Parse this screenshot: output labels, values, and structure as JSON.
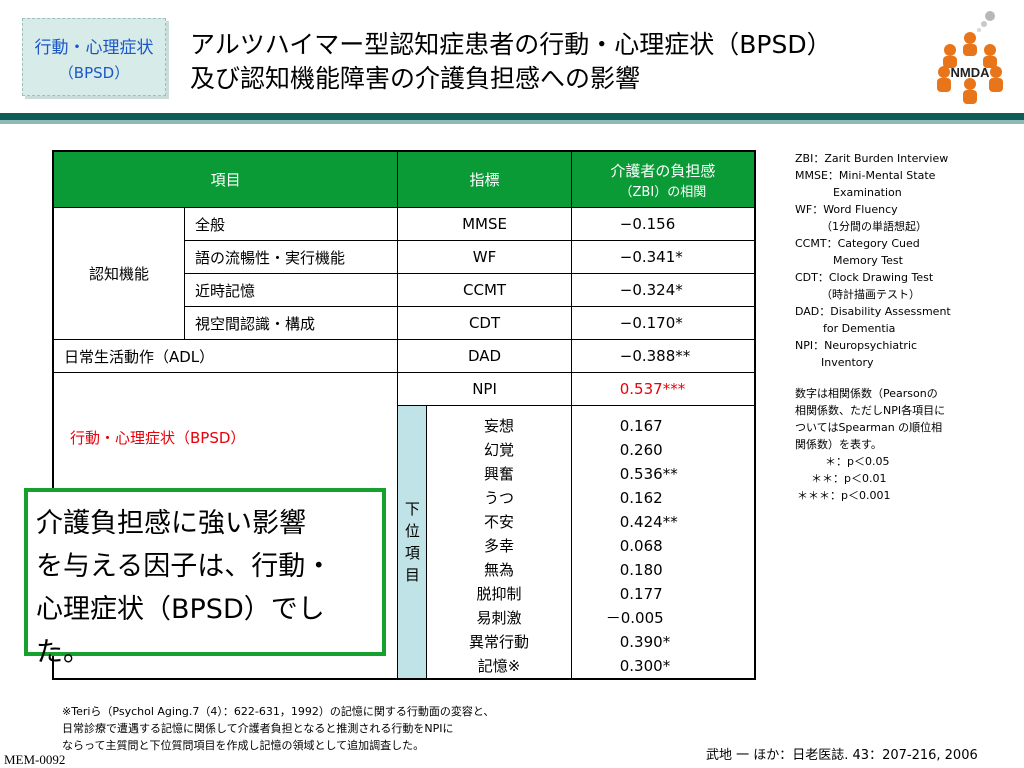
{
  "tag": {
    "line1": "行動・心理症状",
    "line2": "（BPSD）"
  },
  "title": {
    "line1": "アルツハイマー型認知症患者の行動・心理症状（BPSD）",
    "line2": "及び認知機能障害の介護負担感への影響"
  },
  "logo": {
    "text": "NMDA",
    "icon": "nmda-logo-people-ring",
    "color": "#e8751a"
  },
  "table": {
    "headers": {
      "item": "項目",
      "index": "指標",
      "burden_line1": "介護者の負担感",
      "burden_line2": "（ZBI）の相関"
    },
    "cognitive_group": "認知機能",
    "cognitive_rows": [
      {
        "item": "全般",
        "index": "MMSE",
        "value": "−0.156"
      },
      {
        "item": "語の流暢性・実行機能",
        "index": "WF",
        "value": "−0.341*"
      },
      {
        "item": "近時記憶",
        "index": "CCMT",
        "value": "−0.324*"
      },
      {
        "item": "視空間認識・構成",
        "index": "CDT",
        "value": "−0.170*"
      }
    ],
    "adl": {
      "item": "日常生活動作（ADL）",
      "index": "DAD",
      "value": "−0.388**"
    },
    "bpsd": {
      "label": "行動・心理症状（BPSD）",
      "index": "NPI",
      "value": "0.537***",
      "sub_label": [
        "下",
        "位",
        "項",
        "目"
      ],
      "sub_items": [
        {
          "name": "妄想",
          "value": "0.167"
        },
        {
          "name": "幻覚",
          "value": "0.260"
        },
        {
          "name": "興奮",
          "value": "0.536**"
        },
        {
          "name": "うつ",
          "value": "0.162"
        },
        {
          "name": "不安",
          "value": "0.424**"
        },
        {
          "name": "多幸",
          "value": "0.068"
        },
        {
          "name": "無為",
          "value": "0.180"
        },
        {
          "name": "脱抑制",
          "value": "0.177"
        },
        {
          "name": "易刺激",
          "value": "－0.005"
        },
        {
          "name": "異常行動",
          "value": "0.390*"
        },
        {
          "name": "記憶※",
          "value": "0.300*"
        }
      ]
    }
  },
  "callout": {
    "line1": "介護負担感に強い影響",
    "line2": "を与える因子は、行動・",
    "line3": "心理症状（BPSD）でした。"
  },
  "notes": {
    "abbr": [
      "ZBI：Zarit Burden Interview",
      "MMSE：Mini-Mental State",
      "Examination",
      "WF：Word Fluency",
      "（1分間の単語想起）",
      "CCMT：Category Cued",
      "Memory Test",
      "CDT：Clock Drawing Test",
      "（時計描画テスト）",
      "DAD：Disability Assessment",
      "for Dementia",
      "NPI：Neuropsychiatric",
      "Inventory"
    ],
    "desc": [
      "数字は相関係数（Pearsonの",
      "相関係数、ただしNPI各項目に",
      "ついてはSpearman の順位相",
      "関係数）を表す。"
    ],
    "sig": [
      "＊：p＜0.05",
      "＊＊：p＜0.01",
      "＊＊＊：p＜0.001"
    ]
  },
  "footnote": [
    "※Teriら（Psychol Aging.7（4）：622-631，1992）の記憶に関する行動面の変容と、",
    "日常診療で遭遇する記憶に関係して介護者負担となると推測される行動をNPIに",
    "ならって主質問と下位質問項目を作成し記憶の領域として追加調査した。"
  ],
  "citation": "武地 一 ほか：日老医誌. 43：207-216, 2006",
  "code": "MEM-0092"
}
